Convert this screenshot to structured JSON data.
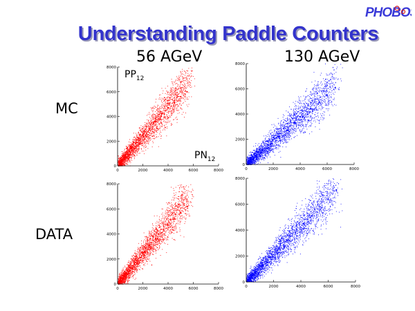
{
  "title": "Understanding Paddle Counters",
  "logo": {
    "text": "PHOBOS"
  },
  "columns": [
    "56 AGeV",
    "130 AGeV"
  ],
  "rows": [
    "MC",
    "DATA"
  ],
  "axis_names": {
    "y": "PP",
    "y_sub": "12",
    "x": "PN",
    "x_sub": "12"
  },
  "colors": {
    "56 AGeV": "#ff0000",
    "130 AGeV": "#0000ff",
    "title": "#3333cc"
  },
  "chart_data": [
    {
      "type": "scatter",
      "panel": "MC 56 AGeV",
      "color": "#ff0000",
      "xlim": [
        0,
        8000
      ],
      "ylim": [
        0,
        8000
      ],
      "xticks": [
        "0",
        "2000",
        "4000",
        "6000",
        "8000"
      ],
      "yticks": [
        "0",
        "2000",
        "4000",
        "6000",
        "8000"
      ],
      "grid": false,
      "trend": {
        "x_max": 6000,
        "y_max": 7200
      },
      "points": [
        [
          200,
          300
        ],
        [
          600,
          900
        ],
        [
          1000,
          1400
        ],
        [
          1500,
          1900
        ],
        [
          2000,
          2500
        ],
        [
          2500,
          3000
        ],
        [
          3000,
          3600
        ],
        [
          3500,
          4200
        ],
        [
          4000,
          4700
        ],
        [
          4500,
          5100
        ],
        [
          5000,
          5600
        ],
        [
          5500,
          6000
        ]
      ]
    },
    {
      "type": "scatter",
      "panel": "MC 130 AGeV",
      "color": "#0000ff",
      "xlim": [
        0,
        8000
      ],
      "ylim": [
        0,
        8000
      ],
      "xticks": [
        "0",
        "2000",
        "4000",
        "6000",
        "8000"
      ],
      "yticks": [
        "0",
        "2000",
        "4000",
        "6000",
        "8000"
      ],
      "grid": false,
      "trend": {
        "x_max": 7000,
        "y_max": 6700
      },
      "points": [
        [
          200,
          200
        ],
        [
          700,
          700
        ],
        [
          1200,
          1100
        ],
        [
          1800,
          1600
        ],
        [
          2400,
          2200
        ],
        [
          3000,
          2700
        ],
        [
          3600,
          3300
        ],
        [
          4200,
          3800
        ],
        [
          4800,
          4400
        ],
        [
          5400,
          4900
        ],
        [
          6000,
          5500
        ],
        [
          6600,
          6100
        ]
      ]
    },
    {
      "type": "scatter",
      "panel": "DATA 56 AGeV",
      "color": "#ff0000",
      "xlim": [
        0,
        8000
      ],
      "ylim": [
        0,
        8000
      ],
      "xticks": [
        "0",
        "2000",
        "4000",
        "6000",
        "8000"
      ],
      "yticks": [
        "0",
        "2000",
        "4000",
        "6000",
        "8000"
      ],
      "grid": false,
      "trend": {
        "x_max": 6000,
        "y_max": 7400
      },
      "points": [
        [
          200,
          300
        ],
        [
          600,
          800
        ],
        [
          1000,
          1300
        ],
        [
          1500,
          1900
        ],
        [
          2000,
          2500
        ],
        [
          2500,
          3100
        ],
        [
          3000,
          3600
        ],
        [
          3500,
          4100
        ],
        [
          4000,
          4700
        ],
        [
          4500,
          5200
        ],
        [
          5000,
          5700
        ],
        [
          5500,
          6200
        ]
      ]
    },
    {
      "type": "scatter",
      "panel": "DATA 130 AGeV",
      "color": "#0000ff",
      "xlim": [
        0,
        8000
      ],
      "ylim": [
        0,
        8000
      ],
      "xticks": [
        "0",
        "2000",
        "4000",
        "6000",
        "8000"
      ],
      "yticks": [
        "0",
        "2000",
        "4000",
        "6000",
        "8000"
      ],
      "grid": false,
      "trend": {
        "x_max": 7000,
        "y_max": 7600
      },
      "points": [
        [
          200,
          200
        ],
        [
          700,
          800
        ],
        [
          1200,
          1300
        ],
        [
          1800,
          1900
        ],
        [
          2400,
          2600
        ],
        [
          3000,
          3200
        ],
        [
          3600,
          3800
        ],
        [
          4200,
          4500
        ],
        [
          4800,
          5100
        ],
        [
          5400,
          5800
        ],
        [
          6000,
          6400
        ],
        [
          6600,
          7100
        ]
      ]
    }
  ]
}
